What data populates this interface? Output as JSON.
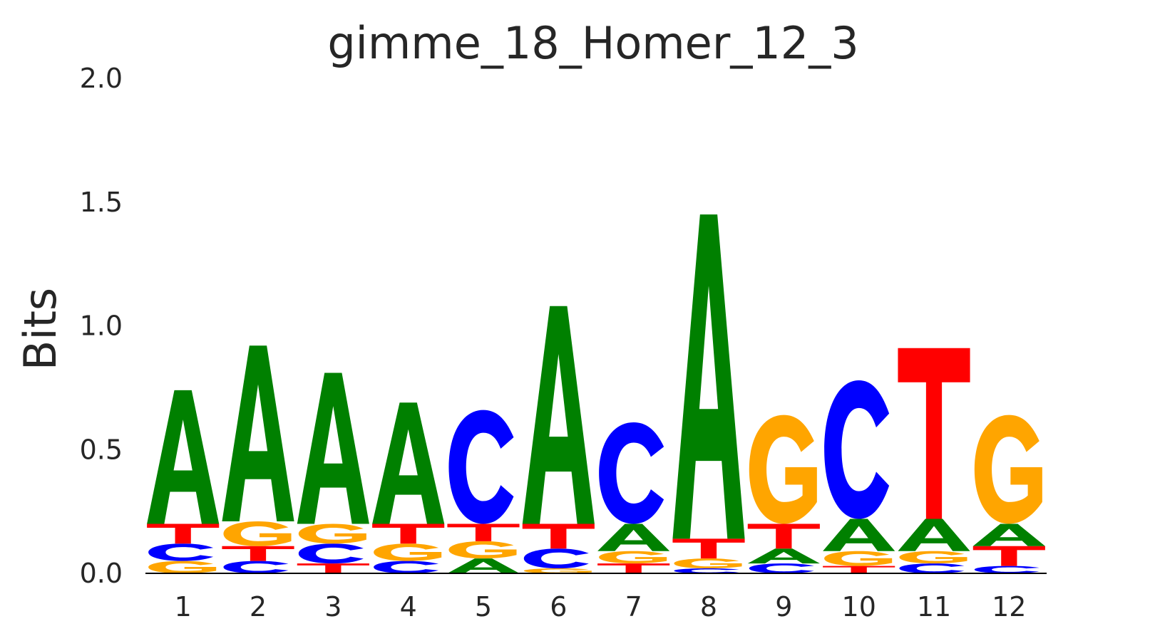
{
  "chart_data": {
    "type": "sequence-logo",
    "title": "gimme_18_Homer_12_3",
    "ylabel": "Bits",
    "xlabel": "",
    "ylim": [
      0,
      2.0
    ],
    "yticks": [
      "0.0",
      "0.5",
      "1.0",
      "1.5",
      "2.0"
    ],
    "grid": false,
    "positions": [
      "1",
      "2",
      "3",
      "4",
      "5",
      "6",
      "7",
      "8",
      "9",
      "10",
      "11",
      "12"
    ],
    "colors": {
      "A": "#008000",
      "C": "#0000ff",
      "G": "#ffa500",
      "T": "#ff0000"
    },
    "stacks": [
      [
        {
          "letter": "G",
          "bits": 0.05
        },
        {
          "letter": "C",
          "bits": 0.07
        },
        {
          "letter": "T",
          "bits": 0.08
        },
        {
          "letter": "A",
          "bits": 0.54
        }
      ],
      [
        {
          "letter": "C",
          "bits": 0.05
        },
        {
          "letter": "T",
          "bits": 0.06
        },
        {
          "letter": "G",
          "bits": 0.1
        },
        {
          "letter": "A",
          "bits": 0.71
        }
      ],
      [
        {
          "letter": "T",
          "bits": 0.04
        },
        {
          "letter": "C",
          "bits": 0.08
        },
        {
          "letter": "G",
          "bits": 0.08
        },
        {
          "letter": "A",
          "bits": 0.61
        }
      ],
      [
        {
          "letter": "C",
          "bits": 0.05
        },
        {
          "letter": "G",
          "bits": 0.07
        },
        {
          "letter": "T",
          "bits": 0.08
        },
        {
          "letter": "A",
          "bits": 0.49
        }
      ],
      [
        {
          "letter": "A",
          "bits": 0.06
        },
        {
          "letter": "G",
          "bits": 0.07
        },
        {
          "letter": "T",
          "bits": 0.07
        },
        {
          "letter": "C",
          "bits": 0.46
        }
      ],
      [
        {
          "letter": "G",
          "bits": 0.02
        },
        {
          "letter": "C",
          "bits": 0.08
        },
        {
          "letter": "T",
          "bits": 0.1
        },
        {
          "letter": "A",
          "bits": 0.88
        }
      ],
      [
        {
          "letter": "T",
          "bits": 0.04
        },
        {
          "letter": "G",
          "bits": 0.05
        },
        {
          "letter": "A",
          "bits": 0.11
        },
        {
          "letter": "C",
          "bits": 0.41
        }
      ],
      [
        {
          "letter": "C",
          "bits": 0.02
        },
        {
          "letter": "G",
          "bits": 0.04
        },
        {
          "letter": "T",
          "bits": 0.08
        },
        {
          "letter": "A",
          "bits": 1.31
        }
      ],
      [
        {
          "letter": "C",
          "bits": 0.04
        },
        {
          "letter": "A",
          "bits": 0.06
        },
        {
          "letter": "T",
          "bits": 0.1
        },
        {
          "letter": "G",
          "bits": 0.44
        }
      ],
      [
        {
          "letter": "T",
          "bits": 0.03
        },
        {
          "letter": "G",
          "bits": 0.06
        },
        {
          "letter": "A",
          "bits": 0.13
        },
        {
          "letter": "C",
          "bits": 0.56
        }
      ],
      [
        {
          "letter": "C",
          "bits": 0.04
        },
        {
          "letter": "G",
          "bits": 0.05
        },
        {
          "letter": "A",
          "bits": 0.13
        },
        {
          "letter": "T",
          "bits": 0.69
        }
      ],
      [
        {
          "letter": "C",
          "bits": 0.03
        },
        {
          "letter": "T",
          "bits": 0.08
        },
        {
          "letter": "A",
          "bits": 0.09
        },
        {
          "letter": "G",
          "bits": 0.44
        }
      ]
    ]
  }
}
